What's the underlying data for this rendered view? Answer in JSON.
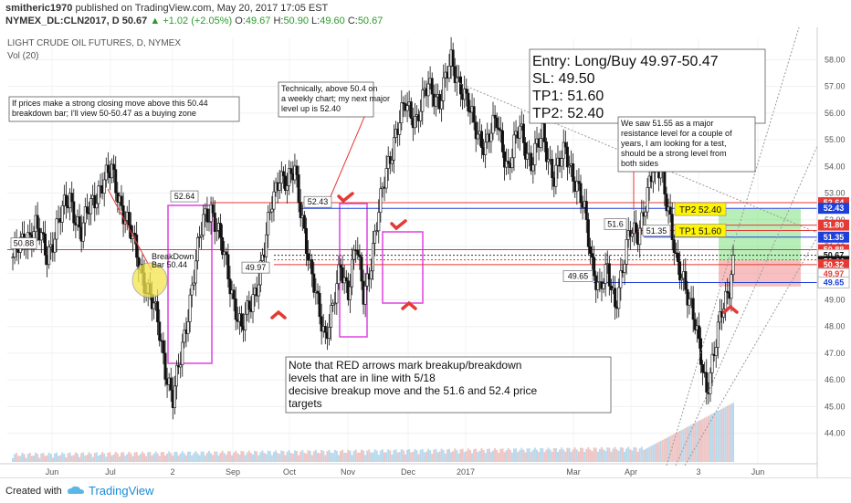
{
  "header": {
    "author": "smitheric1970",
    "published_text": "published on TradingView.com, May 20, 2017 17:05 EST",
    "symbol": "NYMEX_DL:CLN2017, D",
    "last": "50.67",
    "change": "+1.02 (+2.05%)",
    "open_label": "O:",
    "open": "49.67",
    "high_label": "H:",
    "high": "50.90",
    "low_label": "L:",
    "low": "49.60",
    "close_label": "C:",
    "close": "50.67"
  },
  "chart_title": "LIGHT CRUDE OIL FUTURES, D, NYMEX",
  "volume_label": "Vol (20)",
  "footer": {
    "created_with": "Created with",
    "brand": "TradingView"
  },
  "chart_data": {
    "type": "candlestick",
    "y_axis": {
      "ylim": [
        43.2,
        58.8
      ],
      "ticks": [
        44,
        45,
        46,
        47,
        48,
        49,
        50,
        51,
        52,
        53,
        54,
        55,
        56,
        57,
        58
      ],
      "side": "right",
      "grid": true
    },
    "x_axis": {
      "labels": [
        "Jun",
        "Jul",
        "2",
        "Sep",
        "Oct",
        "Nov",
        "Dec",
        "2017",
        "Mar",
        "Apr",
        "3",
        "Jun"
      ]
    },
    "price_tags": [
      {
        "value": 52.64,
        "label": "52.64",
        "color": "#e53935"
      },
      {
        "value": 52.43,
        "label": "52.43",
        "color": "#1e3fd8"
      },
      {
        "value": 51.8,
        "label": "51.80",
        "color": "#e53935"
      },
      {
        "value": 51.35,
        "label": "51.35",
        "color": "#1e3fd8"
      },
      {
        "value": 50.88,
        "label": "50.88",
        "color": "#e53935"
      },
      {
        "value": 50.67,
        "label": "50.67",
        "color": "#ffffff"
      },
      {
        "value": 50.44,
        "label": "50.44",
        "color": "#111111"
      },
      {
        "value": 50.32,
        "label": "50.32",
        "color": "#e53935"
      },
      {
        "value": 49.97,
        "label": "49.97",
        "color": "#ffffff"
      },
      {
        "value": 49.65,
        "label": "49.65",
        "color": "#ffffff"
      }
    ],
    "level_labels": [
      {
        "value": 50.88,
        "label": "50.88"
      },
      {
        "value": 52.64,
        "label": "52.64"
      },
      {
        "value": 52.43,
        "label": "52.43"
      },
      {
        "value": 49.97,
        "label": "49.97"
      },
      {
        "value": 49.65,
        "label": "49.65"
      },
      {
        "value": 51.6,
        "label": "51.6"
      },
      {
        "value": 51.35,
        "label": "51.35"
      }
    ],
    "targets": [
      {
        "label": "TP2 52.40",
        "value": 52.4
      },
      {
        "label": "TP1 51.60",
        "value": 51.6
      }
    ],
    "trade_box": {
      "entry_low": 49.97,
      "entry_high": 50.47,
      "stop": 49.5,
      "tp1": 51.6,
      "tp2": 52.4
    },
    "breakdown_bar_label": "BreakDown Bar 50.44",
    "annotations": {
      "entry_box": [
        "Entry: Long/Buy 49.97-50.47",
        "SL: 49.50",
        "TP1: 51.60",
        "TP2: 52.40"
      ],
      "note_left": [
        "If prices make a strong closing move above this 50.44",
        "breakdown bar; I'll view 50-50.47 as a buying zone"
      ],
      "note_mid": [
        "Technically, above 50.4 on",
        "a weekly chart; my next major",
        "level up is 52.40"
      ],
      "note_right": [
        "We saw 51.55 as a major",
        "resistance level for a couple of",
        "years, I am looking for a test,",
        "should be a strong level from",
        "both sides"
      ],
      "note_bottom": [
        "Note that RED arrows mark breakup/breakdown",
        "levels that are in line with 5/18",
        "decisive breakup move and the 51.6 and 52.4 price",
        "targets"
      ]
    },
    "ohlc_key_points": [
      [
        0,
        50.6
      ],
      [
        6,
        51.2
      ],
      [
        12,
        51.8
      ],
      [
        18,
        50.6
      ],
      [
        24,
        52.0
      ],
      [
        30,
        52.8
      ],
      [
        36,
        51.5
      ],
      [
        40,
        52.4
      ],
      [
        46,
        53.3
      ],
      [
        52,
        53.8
      ],
      [
        58,
        52.3
      ],
      [
        64,
        51.0
      ],
      [
        70,
        49.5
      ],
      [
        76,
        48.2
      ],
      [
        80,
        46.5
      ],
      [
        84,
        45.2
      ],
      [
        88,
        46.8
      ],
      [
        92,
        48.6
      ],
      [
        96,
        50.4
      ],
      [
        100,
        52.0
      ],
      [
        104,
        52.5
      ],
      [
        108,
        51.4
      ],
      [
        112,
        50.3
      ],
      [
        116,
        49.0
      ],
      [
        120,
        47.8
      ],
      [
        124,
        48.7
      ],
      [
        128,
        49.6
      ],
      [
        132,
        50.8
      ],
      [
        136,
        52.7
      ],
      [
        140,
        53.8
      ],
      [
        144,
        53.2
      ],
      [
        148,
        53.9
      ],
      [
        152,
        52.1
      ],
      [
        156,
        50.0
      ],
      [
        160,
        48.9
      ],
      [
        164,
        47.7
      ],
      [
        168,
        48.6
      ],
      [
        172,
        50.3
      ],
      [
        176,
        49.4
      ],
      [
        180,
        51.0
      ],
      [
        184,
        49.2
      ],
      [
        188,
        50.5
      ],
      [
        192,
        52.2
      ],
      [
        196,
        53.9
      ],
      [
        200,
        55.0
      ],
      [
        206,
        56.3
      ],
      [
        212,
        55.8
      ],
      [
        218,
        57.0
      ],
      [
        224,
        56.5
      ],
      [
        230,
        57.9
      ],
      [
        236,
        56.9
      ],
      [
        242,
        55.5
      ],
      [
        248,
        54.8
      ],
      [
        254,
        55.7
      ],
      [
        260,
        53.9
      ],
      [
        266,
        55.5
      ],
      [
        272,
        54.1
      ],
      [
        278,
        55.2
      ],
      [
        284,
        53.6
      ],
      [
        290,
        54.6
      ],
      [
        296,
        53.3
      ],
      [
        300,
        52.2
      ],
      [
        304,
        50.4
      ],
      [
        308,
        49.4
      ],
      [
        312,
        50.0
      ],
      [
        316,
        48.9
      ],
      [
        320,
        50.2
      ],
      [
        324,
        51.5
      ],
      [
        328,
        51.6
      ],
      [
        332,
        52.6
      ],
      [
        336,
        53.8
      ],
      [
        340,
        54.1
      ],
      [
        344,
        52.3
      ],
      [
        348,
        50.3
      ],
      [
        352,
        49.9
      ],
      [
        356,
        48.7
      ],
      [
        360,
        47.2
      ],
      [
        364,
        45.7
      ],
      [
        368,
        47.0
      ],
      [
        372,
        48.5
      ],
      [
        376,
        49.6
      ],
      [
        378,
        50.67
      ]
    ]
  }
}
